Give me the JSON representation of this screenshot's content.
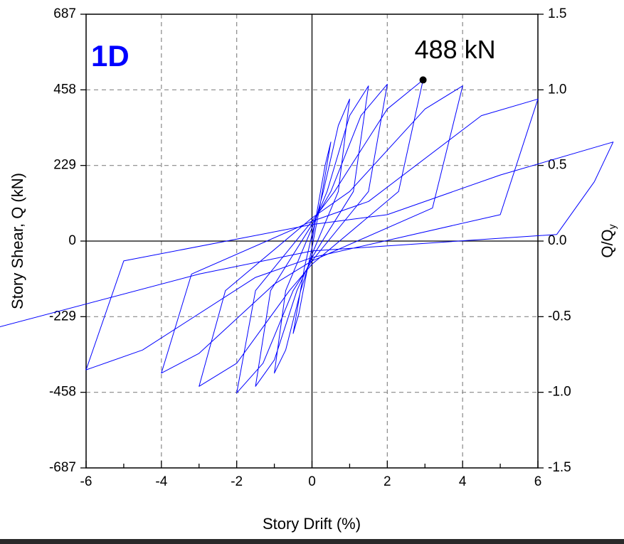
{
  "chart_data": {
    "type": "line",
    "panel_label": "1D",
    "xlabel": "Story Drift (%)",
    "ylabel": "Story Shear, Q (kN)",
    "y2label": {
      "main": "Q/Q",
      "sub": "y"
    },
    "annotations": [
      {
        "text": "488 kN",
        "x": 2.95,
        "y": 488
      }
    ],
    "color": "#0000ff",
    "grid": true,
    "xlim": [
      -6,
      6
    ],
    "xticks": [
      -6,
      -4,
      -2,
      0,
      2,
      4,
      6
    ],
    "xminorticks": [
      -5,
      -3,
      -1,
      1,
      3,
      5
    ],
    "ylim": [
      -687,
      687
    ],
    "yticks": [
      -687,
      -458,
      -229,
      0,
      229,
      458,
      687
    ],
    "y2lim": [
      -1.5,
      1.5
    ],
    "y2ticks": [
      -1.5,
      {
        "value": -1,
        "label": "-1.0"
      },
      -0.5,
      {
        "value": 0,
        "label": "0.0"
      },
      0.5,
      {
        "value": 1,
        "label": "1.0"
      },
      1.5
    ],
    "x": [
      0,
      0.15,
      0.35,
      0.5,
      0.2,
      0,
      -0.15,
      -0.35,
      -0.5,
      -0.2,
      0,
      0.3,
      0.7,
      1,
      0.7,
      0,
      -0.3,
      -0.7,
      -1,
      -0.7,
      0,
      0.4,
      1,
      1.5,
      1.1,
      0,
      -0.4,
      -1,
      -1.5,
      -1.1,
      0,
      0.5,
      1.3,
      2,
      1.5,
      0,
      -0.5,
      -1.3,
      -2,
      -1.5,
      0,
      0.6,
      2,
      2.95,
      2.3,
      0,
      -0.6,
      -2,
      -3,
      -2.3,
      0,
      1,
      3,
      4,
      3.2,
      0,
      -1,
      -3,
      -4,
      -3.2,
      0,
      1.5,
      4.5,
      6,
      5,
      0,
      -1.5,
      -4.5,
      -6,
      -5,
      0,
      2,
      5,
      8,
      7.5,
      6.5,
      0,
      -3,
      -8.3
    ],
    "values": [
      0,
      100,
      230,
      300,
      100,
      -20,
      -100,
      -220,
      -280,
      -80,
      20,
      150,
      350,
      430,
      150,
      -40,
      -150,
      -330,
      -400,
      -150,
      40,
      150,
      380,
      470,
      150,
      -50,
      -150,
      -360,
      -440,
      -150,
      50,
      150,
      380,
      475,
      150,
      -60,
      -150,
      -370,
      -460,
      -150,
      60,
      150,
      400,
      488,
      150,
      -70,
      -150,
      -370,
      -440,
      -150,
      70,
      150,
      400,
      470,
      100,
      -60,
      -130,
      -340,
      -400,
      -100,
      60,
      120,
      380,
      430,
      80,
      -50,
      -110,
      -330,
      -390,
      -60,
      50,
      80,
      200,
      300,
      180,
      20,
      -30,
      -100,
      -260
    ]
  }
}
